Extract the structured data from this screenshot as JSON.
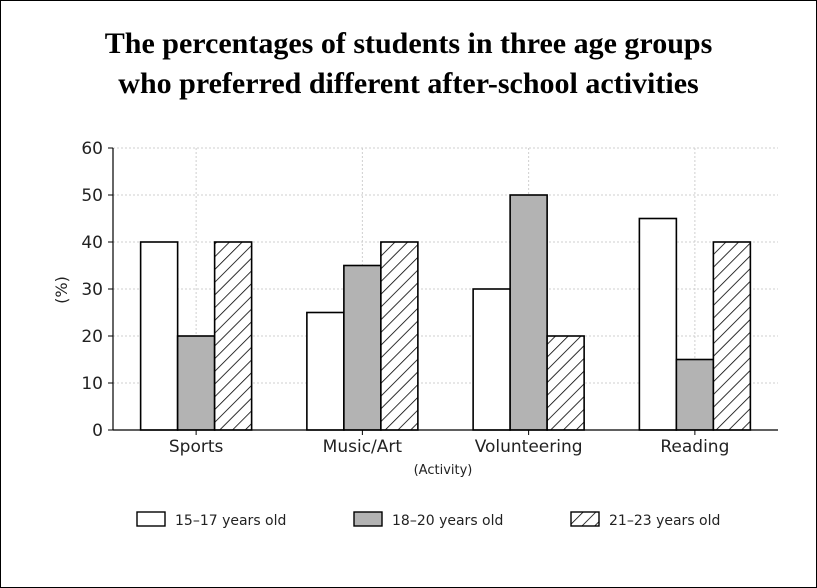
{
  "chart_data": {
    "type": "bar",
    "title_lines": [
      "The percentages of students in three age groups",
      "who preferred different after-school activities"
    ],
    "xlabel": "(Activity)",
    "ylabel": "(%)",
    "categories": [
      "Sports",
      "Music/Art",
      "Volunteering",
      "Reading"
    ],
    "ylim": [
      0,
      60
    ],
    "yticks": [
      "0",
      "10",
      "20",
      "30",
      "40",
      "50",
      "60"
    ],
    "grid": true,
    "legend_position": "bottom",
    "series": [
      {
        "name": "15–17 years old",
        "values": [
          40,
          25,
          30,
          45
        ],
        "fill": "#ffffff",
        "pattern": "none"
      },
      {
        "name": "18–20 years old",
        "values": [
          20,
          35,
          50,
          15
        ],
        "fill": "#b3b3b3",
        "pattern": "none"
      },
      {
        "name": "21–23 years old",
        "values": [
          40,
          40,
          20,
          40
        ],
        "fill": "#ffffff",
        "pattern": "diagonal-hatch"
      }
    ]
  }
}
